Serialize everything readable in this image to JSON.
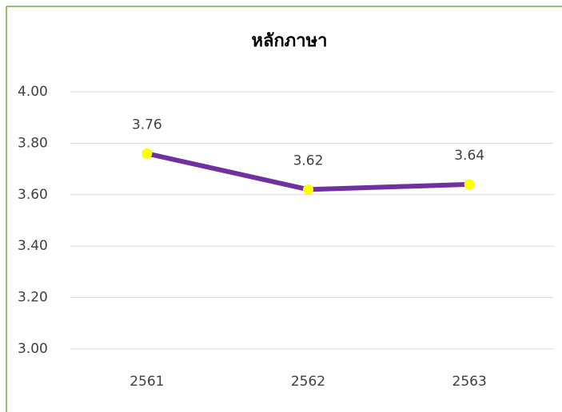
{
  "chart_data": {
    "type": "line",
    "title": "หลักภาษา",
    "categories": [
      "2561",
      "2562",
      "2563"
    ],
    "series": [
      {
        "name": "หลักภาษา",
        "color": "#7030a0",
        "marker_color": "#ffff00",
        "values": [
          3.76,
          3.62,
          3.64
        ]
      }
    ],
    "ylim": [
      3.0,
      4.0
    ],
    "yticks": [
      {
        "value": 3.0,
        "label": "3.00"
      },
      {
        "value": 3.2,
        "label": "3.20"
      },
      {
        "value": 3.4,
        "label": "3.40"
      },
      {
        "value": 3.6,
        "label": "3.60"
      },
      {
        "value": 3.8,
        "label": "3.80"
      },
      {
        "value": 4.0,
        "label": "4.00"
      }
    ],
    "grid": true,
    "data_labels": true
  }
}
